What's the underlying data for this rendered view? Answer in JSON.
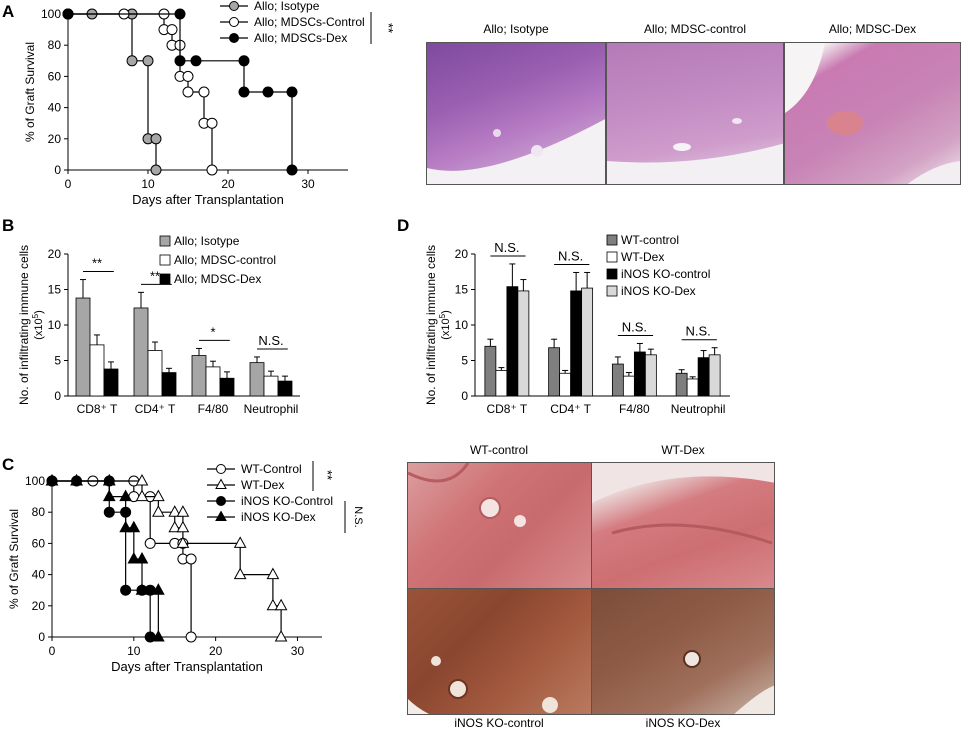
{
  "colors": {
    "gray": "#a6a6a6",
    "white": "#ffffff",
    "black": "#000000",
    "light_gray": "#d9d9d9",
    "dark_gray": "#7f7f7f",
    "he_purple": "#b06bb8",
    "he_pink": "#d98fb0",
    "ihc_brown": "#8a4a35",
    "he_red": "#cf6f74"
  },
  "panels": {
    "A": {
      "letter": "A"
    },
    "B": {
      "letter": "B"
    },
    "C": {
      "letter": "C"
    },
    "D": {
      "letter": "D"
    }
  },
  "histology_top": {
    "labels": [
      "Allo; Isotype",
      "Allo; MDSC-control",
      "Allo; MDSC-Dex"
    ]
  },
  "histology_bottom": {
    "labels": [
      "WT-control",
      "WT-Dex",
      "iNOS KO-control",
      "iNOS KO-Dex"
    ]
  },
  "chart_data": [
    {
      "id": "A",
      "type": "line",
      "step": true,
      "ylabel": "% of Graft Survival",
      "xlabel": "Days after Transplantation",
      "xlim": [
        0,
        35
      ],
      "ylim": [
        0,
        100
      ],
      "xticks": [
        0,
        10,
        20,
        30
      ],
      "yticks": [
        0,
        20,
        40,
        60,
        80,
        100
      ],
      "series": [
        {
          "name": "Allo; Isotype",
          "marker": "circle",
          "fill": "gray",
          "points": [
            [
              0,
              100
            ],
            [
              3,
              100
            ],
            [
              8,
              100
            ],
            [
              8,
              70
            ],
            [
              10,
              70
            ],
            [
              10,
              20
            ],
            [
              11,
              20
            ],
            [
              11,
              0
            ]
          ]
        },
        {
          "name": "Allo; MDSCs-Control",
          "marker": "circle",
          "fill": "white",
          "points": [
            [
              0,
              100
            ],
            [
              7,
              100
            ],
            [
              12,
              100
            ],
            [
              12,
              90
            ],
            [
              13,
              90
            ],
            [
              13,
              80
            ],
            [
              14,
              80
            ],
            [
              14,
              60
            ],
            [
              15,
              60
            ],
            [
              15,
              50
            ],
            [
              17,
              50
            ],
            [
              17,
              30
            ],
            [
              18,
              30
            ],
            [
              18,
              0
            ]
          ]
        },
        {
          "name": "Allo; MDSCs-Dex",
          "marker": "circle",
          "fill": "black",
          "points": [
            [
              0,
              100
            ],
            [
              14,
              100
            ],
            [
              14,
              70
            ],
            [
              16,
              70
            ],
            [
              16,
              70
            ],
            [
              22,
              70
            ],
            [
              22,
              50
            ],
            [
              25,
              50
            ],
            [
              25,
              50
            ],
            [
              28,
              50
            ],
            [
              28,
              0
            ]
          ]
        }
      ],
      "significance": "**"
    },
    {
      "id": "B",
      "type": "bar",
      "ylabel": "No. of infiltrating immune cells",
      "ylabel2": "(x10",
      "ylabel2_sup": "5",
      "ylabel2_end": ")",
      "categories": [
        "CD8⁺ T",
        "CD4⁺ T",
        "F4/80",
        "Neutrophil"
      ],
      "ylim": [
        0,
        20
      ],
      "yticks": [
        0,
        5,
        10,
        15,
        20
      ],
      "series": [
        {
          "name": "Allo; Isotype",
          "fill": "gray",
          "values": [
            13.8,
            12.4,
            5.7,
            4.7
          ],
          "errors": [
            2.6,
            2.2,
            1.0,
            0.8
          ]
        },
        {
          "name": "Allo; MDSC-control",
          "fill": "white",
          "values": [
            7.2,
            6.4,
            4.1,
            2.8
          ],
          "errors": [
            1.4,
            1.2,
            0.8,
            0.7
          ]
        },
        {
          "name": "Allo; MDSC-Dex",
          "fill": "black",
          "values": [
            3.8,
            3.3,
            2.5,
            2.1
          ],
          "errors": [
            1.0,
            0.6,
            0.9,
            0.7
          ]
        }
      ],
      "annotations": [
        "**",
        "**",
        "*",
        "N.S."
      ]
    },
    {
      "id": "D",
      "type": "bar",
      "ylabel": "No. of infiltrating immune cells",
      "ylabel2": "(x10",
      "ylabel2_sup": "5",
      "ylabel2_end": ")",
      "categories": [
        "CD8⁺ T",
        "CD4⁺ T",
        "F4/80",
        "Neutrophil"
      ],
      "ylim": [
        0,
        20
      ],
      "yticks": [
        0,
        5,
        10,
        15,
        20
      ],
      "series": [
        {
          "name": "WT-control",
          "fill": "dark_gray",
          "values": [
            7.0,
            6.8,
            4.5,
            3.2
          ],
          "errors": [
            1.0,
            1.2,
            1.0,
            0.5
          ]
        },
        {
          "name": "WT-Dex",
          "fill": "white",
          "values": [
            3.6,
            3.2,
            2.8,
            2.4
          ],
          "errors": [
            0.4,
            0.4,
            0.5,
            0.3
          ]
        },
        {
          "name": "iNOS KO-control",
          "fill": "black",
          "values": [
            15.4,
            14.8,
            6.2,
            5.4
          ],
          "errors": [
            3.2,
            2.6,
            1.2,
            1.0
          ]
        },
        {
          "name": "iNOS KO-Dex",
          "fill": "light_gray",
          "values": [
            14.8,
            15.2,
            5.8,
            5.8
          ],
          "errors": [
            1.6,
            2.2,
            0.8,
            1.0
          ]
        }
      ],
      "annotations": [
        "N.S.",
        "N.S.",
        "N.S.",
        "N.S."
      ]
    },
    {
      "id": "C",
      "type": "line",
      "step": true,
      "ylabel": "% of Graft Survival",
      "xlabel": "Days after Transplantation",
      "xlim": [
        0,
        33
      ],
      "ylim": [
        0,
        100
      ],
      "xticks": [
        0,
        10,
        20,
        30
      ],
      "yticks": [
        0,
        20,
        40,
        60,
        80,
        100
      ],
      "series": [
        {
          "name": "WT-Control",
          "marker": "circle",
          "fill": "white",
          "points": [
            [
              0,
              100
            ],
            [
              5,
              100
            ],
            [
              10,
              100
            ],
            [
              10,
              90
            ],
            [
              12,
              90
            ],
            [
              12,
              60
            ],
            [
              15,
              60
            ],
            [
              15,
              60
            ],
            [
              16,
              60
            ],
            [
              16,
              50
            ],
            [
              17,
              50
            ],
            [
              17,
              0
            ]
          ]
        },
        {
          "name": "WT-Dex",
          "marker": "triangle",
          "fill": "white",
          "points": [
            [
              0,
              100
            ],
            [
              3,
              100
            ],
            [
              7,
              100
            ],
            [
              11,
              100
            ],
            [
              11,
              90
            ],
            [
              13,
              90
            ],
            [
              13,
              80
            ],
            [
              15,
              80
            ],
            [
              15,
              70
            ],
            [
              16,
              70
            ],
            [
              16,
              80
            ],
            [
              16,
              60
            ],
            [
              23,
              60
            ],
            [
              23,
              40
            ],
            [
              27,
              40
            ],
            [
              27,
              20
            ],
            [
              28,
              20
            ],
            [
              28,
              0
            ]
          ]
        },
        {
          "name": "iNOS KO-Control",
          "marker": "circle",
          "fill": "black",
          "points": [
            [
              0,
              100
            ],
            [
              3,
              100
            ],
            [
              7,
              100
            ],
            [
              7,
              80
            ],
            [
              9,
              80
            ],
            [
              9,
              30
            ],
            [
              11,
              30
            ],
            [
              11,
              30
            ],
            [
              12,
              30
            ],
            [
              12,
              0
            ]
          ]
        },
        {
          "name": "iNOS KO-Dex",
          "marker": "triangle",
          "fill": "black",
          "points": [
            [
              0,
              100
            ],
            [
              3,
              100
            ],
            [
              7,
              100
            ],
            [
              7,
              90
            ],
            [
              9,
              90
            ],
            [
              9,
              70
            ],
            [
              10,
              70
            ],
            [
              10,
              50
            ],
            [
              11,
              50
            ],
            [
              11,
              30
            ],
            [
              13,
              30
            ],
            [
              13,
              0
            ]
          ]
        }
      ],
      "significance1": "**",
      "significance2": "N.S."
    }
  ]
}
